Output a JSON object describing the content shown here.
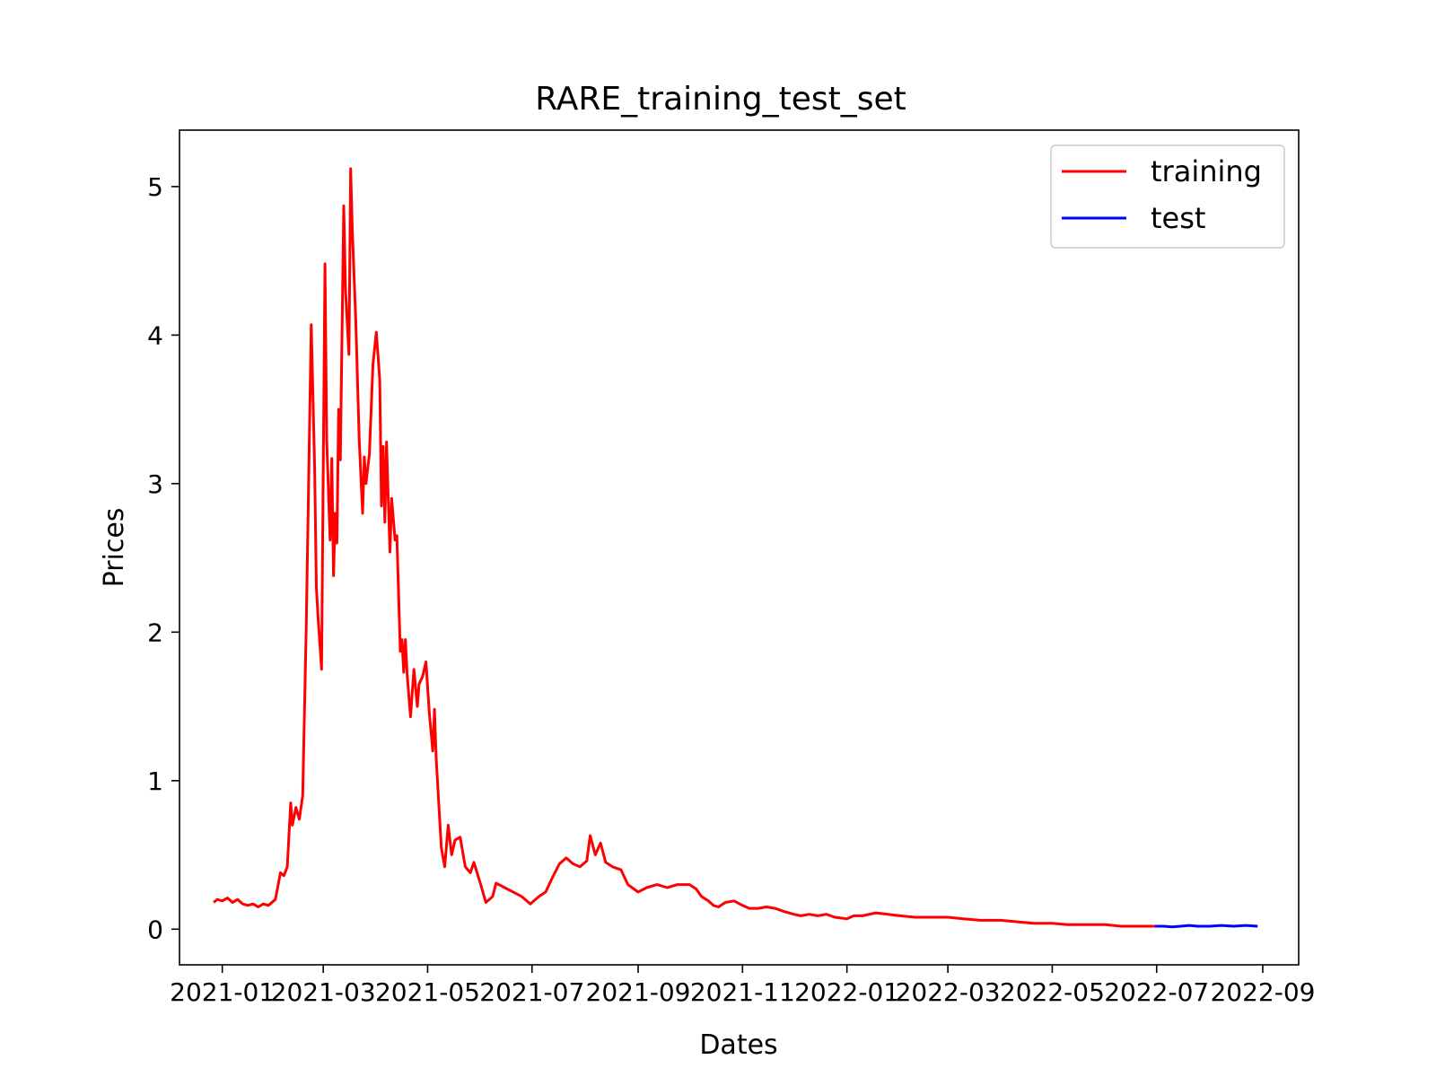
{
  "chart_data": {
    "type": "line",
    "title": "RARE_training_test_set",
    "xlabel": "Dates",
    "ylabel": "Prices",
    "xlim": [
      "2020-12-07",
      "2022-09-22"
    ],
    "ylim": [
      -0.24,
      5.38
    ],
    "x_ticks": [
      "2021-01",
      "2021-03",
      "2021-05",
      "2021-07",
      "2021-09",
      "2021-11",
      "2022-01",
      "2022-03",
      "2022-05",
      "2022-07",
      "2022-09"
    ],
    "y_ticks": [
      "0",
      "1",
      "2",
      "3",
      "4",
      "5"
    ],
    "y_tick_values": [
      0,
      1,
      2,
      3,
      4,
      5
    ],
    "grid": false,
    "legend": "upper-right",
    "series": [
      {
        "name": "training",
        "color": "#ff0000",
        "points": [
          [
            "2020-12-27",
            0.18
          ],
          [
            "2020-12-29",
            0.2
          ],
          [
            "2021-01-01",
            0.19
          ],
          [
            "2021-01-04",
            0.21
          ],
          [
            "2021-01-07",
            0.18
          ],
          [
            "2021-01-10",
            0.2
          ],
          [
            "2021-01-13",
            0.17
          ],
          [
            "2021-01-16",
            0.16
          ],
          [
            "2021-01-19",
            0.17
          ],
          [
            "2021-01-22",
            0.15
          ],
          [
            "2021-01-25",
            0.17
          ],
          [
            "2021-01-28",
            0.16
          ],
          [
            "2021-02-01",
            0.2
          ],
          [
            "2021-02-04",
            0.38
          ],
          [
            "2021-02-06",
            0.36
          ],
          [
            "2021-02-08",
            0.42
          ],
          [
            "2021-02-10",
            0.85
          ],
          [
            "2021-02-11",
            0.7
          ],
          [
            "2021-02-13",
            0.82
          ],
          [
            "2021-02-15",
            0.74
          ],
          [
            "2021-02-17",
            0.9
          ],
          [
            "2021-02-19",
            2.0
          ],
          [
            "2021-02-22",
            4.07
          ],
          [
            "2021-02-24",
            3.1
          ],
          [
            "2021-02-25",
            2.3
          ],
          [
            "2021-02-26",
            2.1
          ],
          [
            "2021-02-28",
            1.75
          ],
          [
            "2021-03-02",
            4.48
          ],
          [
            "2021-03-03",
            3.3
          ],
          [
            "2021-03-05",
            2.62
          ],
          [
            "2021-03-06",
            3.17
          ],
          [
            "2021-03-07",
            2.38
          ],
          [
            "2021-03-08",
            2.8
          ],
          [
            "2021-03-09",
            2.6
          ],
          [
            "2021-03-10",
            3.5
          ],
          [
            "2021-03-11",
            3.16
          ],
          [
            "2021-03-13",
            4.87
          ],
          [
            "2021-03-14",
            4.3
          ],
          [
            "2021-03-16",
            3.87
          ],
          [
            "2021-03-17",
            5.12
          ],
          [
            "2021-03-18",
            4.7
          ],
          [
            "2021-03-20",
            4.1
          ],
          [
            "2021-03-22",
            3.3
          ],
          [
            "2021-03-24",
            2.8
          ],
          [
            "2021-03-25",
            3.18
          ],
          [
            "2021-03-26",
            3.0
          ],
          [
            "2021-03-28",
            3.2
          ],
          [
            "2021-03-30",
            3.8
          ],
          [
            "2021-04-01",
            4.02
          ],
          [
            "2021-04-03",
            3.7
          ],
          [
            "2021-04-04",
            2.85
          ],
          [
            "2021-04-05",
            3.25
          ],
          [
            "2021-04-06",
            2.74
          ],
          [
            "2021-04-07",
            3.28
          ],
          [
            "2021-04-08",
            2.9
          ],
          [
            "2021-04-09",
            2.54
          ],
          [
            "2021-04-10",
            2.9
          ],
          [
            "2021-04-12",
            2.62
          ],
          [
            "2021-04-13",
            2.65
          ],
          [
            "2021-04-15",
            1.87
          ],
          [
            "2021-04-16",
            1.95
          ],
          [
            "2021-04-17",
            1.73
          ],
          [
            "2021-04-18",
            1.95
          ],
          [
            "2021-04-19",
            1.72
          ],
          [
            "2021-04-21",
            1.43
          ],
          [
            "2021-04-23",
            1.75
          ],
          [
            "2021-04-25",
            1.5
          ],
          [
            "2021-04-26",
            1.65
          ],
          [
            "2021-04-28",
            1.7
          ],
          [
            "2021-04-30",
            1.8
          ],
          [
            "2021-05-02",
            1.45
          ],
          [
            "2021-05-04",
            1.2
          ],
          [
            "2021-05-05",
            1.48
          ],
          [
            "2021-05-06",
            1.15
          ],
          [
            "2021-05-08",
            0.75
          ],
          [
            "2021-05-09",
            0.55
          ],
          [
            "2021-05-11",
            0.42
          ],
          [
            "2021-05-13",
            0.7
          ],
          [
            "2021-05-15",
            0.5
          ],
          [
            "2021-05-17",
            0.6
          ],
          [
            "2021-05-20",
            0.62
          ],
          [
            "2021-05-23",
            0.42
          ],
          [
            "2021-05-26",
            0.38
          ],
          [
            "2021-05-28",
            0.45
          ],
          [
            "2021-06-01",
            0.3
          ],
          [
            "2021-06-04",
            0.18
          ],
          [
            "2021-06-08",
            0.22
          ],
          [
            "2021-06-10",
            0.31
          ],
          [
            "2021-06-15",
            0.28
          ],
          [
            "2021-06-20",
            0.25
          ],
          [
            "2021-06-25",
            0.22
          ],
          [
            "2021-06-30",
            0.17
          ],
          [
            "2021-07-05",
            0.22
          ],
          [
            "2021-07-09",
            0.25
          ],
          [
            "2021-07-13",
            0.35
          ],
          [
            "2021-07-17",
            0.44
          ],
          [
            "2021-07-21",
            0.48
          ],
          [
            "2021-07-25",
            0.44
          ],
          [
            "2021-07-29",
            0.42
          ],
          [
            "2021-08-02",
            0.46
          ],
          [
            "2021-08-04",
            0.63
          ],
          [
            "2021-08-07",
            0.5
          ],
          [
            "2021-08-10",
            0.58
          ],
          [
            "2021-08-13",
            0.45
          ],
          [
            "2021-08-17",
            0.42
          ],
          [
            "2021-08-22",
            0.4
          ],
          [
            "2021-08-26",
            0.3
          ],
          [
            "2021-09-01",
            0.25
          ],
          [
            "2021-09-06",
            0.28
          ],
          [
            "2021-09-12",
            0.3
          ],
          [
            "2021-09-18",
            0.28
          ],
          [
            "2021-09-24",
            0.3
          ],
          [
            "2021-10-01",
            0.3
          ],
          [
            "2021-10-05",
            0.27
          ],
          [
            "2021-10-08",
            0.22
          ],
          [
            "2021-10-12",
            0.19
          ],
          [
            "2021-10-15",
            0.16
          ],
          [
            "2021-10-18",
            0.15
          ],
          [
            "2021-10-22",
            0.18
          ],
          [
            "2021-10-27",
            0.19
          ],
          [
            "2021-11-01",
            0.16
          ],
          [
            "2021-11-05",
            0.14
          ],
          [
            "2021-11-10",
            0.14
          ],
          [
            "2021-11-15",
            0.15
          ],
          [
            "2021-11-20",
            0.14
          ],
          [
            "2021-11-25",
            0.12
          ],
          [
            "2021-12-01",
            0.1
          ],
          [
            "2021-12-05",
            0.09
          ],
          [
            "2021-12-10",
            0.1
          ],
          [
            "2021-12-15",
            0.09
          ],
          [
            "2021-12-20",
            0.1
          ],
          [
            "2021-12-25",
            0.08
          ],
          [
            "2022-01-01",
            0.07
          ],
          [
            "2022-01-05",
            0.09
          ],
          [
            "2022-01-10",
            0.09
          ],
          [
            "2022-01-18",
            0.11
          ],
          [
            "2022-01-25",
            0.1
          ],
          [
            "2022-02-01",
            0.09
          ],
          [
            "2022-02-10",
            0.08
          ],
          [
            "2022-02-20",
            0.08
          ],
          [
            "2022-03-01",
            0.08
          ],
          [
            "2022-03-10",
            0.07
          ],
          [
            "2022-03-20",
            0.06
          ],
          [
            "2022-04-01",
            0.06
          ],
          [
            "2022-04-10",
            0.05
          ],
          [
            "2022-04-20",
            0.04
          ],
          [
            "2022-05-01",
            0.04
          ],
          [
            "2022-05-10",
            0.03
          ],
          [
            "2022-05-20",
            0.03
          ],
          [
            "2022-06-01",
            0.03
          ],
          [
            "2022-06-10",
            0.02
          ],
          [
            "2022-06-20",
            0.02
          ],
          [
            "2022-06-30",
            0.02
          ]
        ]
      },
      {
        "name": "test",
        "color": "#0000ff",
        "points": [
          [
            "2022-06-30",
            0.02
          ],
          [
            "2022-07-05",
            0.02
          ],
          [
            "2022-07-10",
            0.015
          ],
          [
            "2022-07-15",
            0.02
          ],
          [
            "2022-07-20",
            0.025
          ],
          [
            "2022-07-25",
            0.02
          ],
          [
            "2022-08-01",
            0.02
          ],
          [
            "2022-08-08",
            0.025
          ],
          [
            "2022-08-15",
            0.02
          ],
          [
            "2022-08-22",
            0.025
          ],
          [
            "2022-08-29",
            0.02
          ]
        ]
      }
    ]
  }
}
